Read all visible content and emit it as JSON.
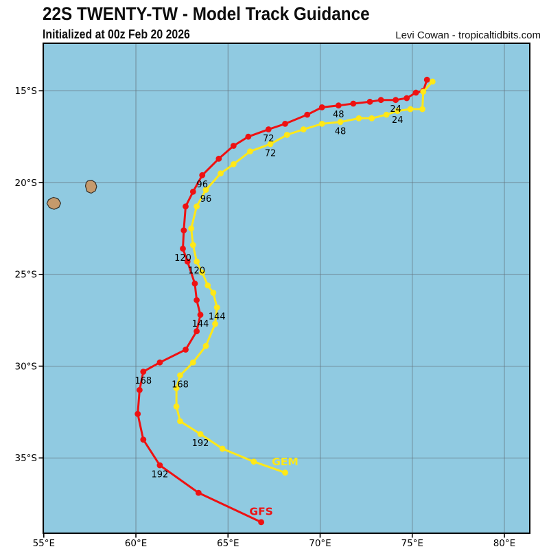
{
  "header": {
    "title": "22S TWENTY-TW - Model Track Guidance",
    "subtitle": "Initialized at 00z Feb 20 2026",
    "credit": "Levi Cowan - tropicaltidbits.com"
  },
  "chart_data": {
    "type": "line",
    "title": "22S TWENTY-TW - Model Track Guidance",
    "subtitle": "Initialized at 00z Feb 20 2026",
    "grid": true,
    "map_bounds": {
      "lon_min": 54.97,
      "lon_max": 81.38,
      "lat_min": -39.1,
      "lat_max": -12.41
    },
    "lon_ticks": {
      "values": [
        55,
        60,
        65,
        70,
        75,
        80
      ],
      "labels": [
        "55°E",
        "60°E",
        "65°E",
        "70°E",
        "75°E",
        "80°E"
      ]
    },
    "lat_ticks": {
      "values": [
        -15,
        -20,
        -25,
        -30,
        -35
      ],
      "labels": [
        "15°S",
        "20°S",
        "25°S",
        "30°S",
        "35°S"
      ]
    },
    "point_format": [
      "hour",
      "lon_E",
      "lat"
    ],
    "labeled_hours": [
      24,
      48,
      72,
      96,
      120,
      144,
      168,
      192
    ],
    "series": [
      {
        "name": "GFS",
        "color": "#ee1112",
        "points": [
          [
            0,
            75.8,
            -14.4
          ],
          [
            6,
            75.6,
            -15.0
          ],
          [
            12,
            75.2,
            -15.1
          ],
          [
            18,
            74.7,
            -15.4
          ],
          [
            24,
            74.1,
            -15.5
          ],
          [
            30,
            73.3,
            -15.5
          ],
          [
            36,
            72.7,
            -15.6
          ],
          [
            42,
            71.8,
            -15.7
          ],
          [
            48,
            71.0,
            -15.8
          ],
          [
            54,
            70.1,
            -15.9
          ],
          [
            60,
            69.3,
            -16.3
          ],
          [
            66,
            68.1,
            -16.8
          ],
          [
            72,
            67.2,
            -17.1
          ],
          [
            78,
            66.1,
            -17.5
          ],
          [
            84,
            65.3,
            -18.0
          ],
          [
            90,
            64.5,
            -18.7
          ],
          [
            96,
            63.6,
            -19.6
          ],
          [
            102,
            63.1,
            -20.5
          ],
          [
            108,
            62.7,
            -21.3
          ],
          [
            114,
            62.6,
            -22.6
          ],
          [
            120,
            62.55,
            -23.6
          ],
          [
            126,
            62.8,
            -24.3
          ],
          [
            132,
            63.2,
            -25.5
          ],
          [
            138,
            63.3,
            -26.4
          ],
          [
            144,
            63.5,
            -27.2
          ],
          [
            150,
            63.3,
            -28.1
          ],
          [
            156,
            62.7,
            -29.1
          ],
          [
            162,
            61.3,
            -29.8
          ],
          [
            168,
            60.4,
            -30.3
          ],
          [
            174,
            60.2,
            -31.3
          ],
          [
            180,
            60.1,
            -32.6
          ],
          [
            186,
            60.4,
            -34.0
          ],
          [
            192,
            61.3,
            -35.4
          ],
          [
            198,
            63.4,
            -36.9
          ],
          [
            204,
            66.8,
            -38.5
          ]
        ]
      },
      {
        "name": "GEM",
        "color": "#ffe818",
        "points": [
          [
            0,
            76.1,
            -14.5
          ],
          [
            6,
            75.6,
            -15.05
          ],
          [
            12,
            75.55,
            -16.0
          ],
          [
            18,
            74.9,
            -16.0
          ],
          [
            24,
            74.2,
            -16.1
          ],
          [
            30,
            73.6,
            -16.3
          ],
          [
            36,
            72.8,
            -16.5
          ],
          [
            42,
            72.1,
            -16.5
          ],
          [
            48,
            71.1,
            -16.7
          ],
          [
            54,
            70.1,
            -16.8
          ],
          [
            60,
            69.1,
            -17.1
          ],
          [
            66,
            68.2,
            -17.4
          ],
          [
            72,
            67.3,
            -17.9
          ],
          [
            78,
            66.2,
            -18.3
          ],
          [
            84,
            65.3,
            -19.0
          ],
          [
            90,
            64.6,
            -19.5
          ],
          [
            96,
            63.8,
            -20.4
          ],
          [
            102,
            63.3,
            -21.3
          ],
          [
            108,
            63.0,
            -22.5
          ],
          [
            114,
            63.1,
            -23.4
          ],
          [
            120,
            63.3,
            -24.3
          ],
          [
            126,
            63.6,
            -24.9
          ],
          [
            132,
            63.9,
            -25.6
          ],
          [
            138,
            64.2,
            -26.0
          ],
          [
            144,
            64.4,
            -26.8
          ],
          [
            150,
            64.3,
            -27.7
          ],
          [
            156,
            63.8,
            -28.9
          ],
          [
            162,
            63.1,
            -29.8
          ],
          [
            168,
            62.4,
            -30.5
          ],
          [
            174,
            62.2,
            -31.2
          ],
          [
            180,
            62.2,
            -32.2
          ],
          [
            186,
            62.4,
            -33.0
          ],
          [
            192,
            63.5,
            -33.7
          ],
          [
            198,
            64.7,
            -34.5
          ],
          [
            204,
            66.4,
            -35.2
          ],
          [
            210,
            68.1,
            -35.8
          ]
        ]
      }
    ],
    "islands": [
      {
        "name": "mauritius",
        "points": [
          [
            57.39,
            -19.91
          ],
          [
            57.61,
            -19.87
          ],
          [
            57.8,
            -20.0
          ],
          [
            57.87,
            -20.22
          ],
          [
            57.8,
            -20.45
          ],
          [
            57.57,
            -20.58
          ],
          [
            57.35,
            -20.49
          ],
          [
            57.26,
            -20.19
          ],
          [
            57.3,
            -20.0
          ]
        ]
      },
      {
        "name": "reunion",
        "points": [
          [
            55.26,
            -20.93
          ],
          [
            55.53,
            -20.8
          ],
          [
            55.79,
            -20.9
          ],
          [
            55.92,
            -21.12
          ],
          [
            55.82,
            -21.35
          ],
          [
            55.56,
            -21.46
          ],
          [
            55.3,
            -21.36
          ],
          [
            55.17,
            -21.14
          ]
        ]
      }
    ],
    "colors": {
      "ocean": "#90cae1",
      "land": "#c59a6c",
      "land_outline": "#33302a",
      "grid": "#63727c",
      "frame": "#000000",
      "text": "#000000",
      "gfs_red": "#ee1112",
      "gem_yellow": "#ffe818"
    }
  }
}
